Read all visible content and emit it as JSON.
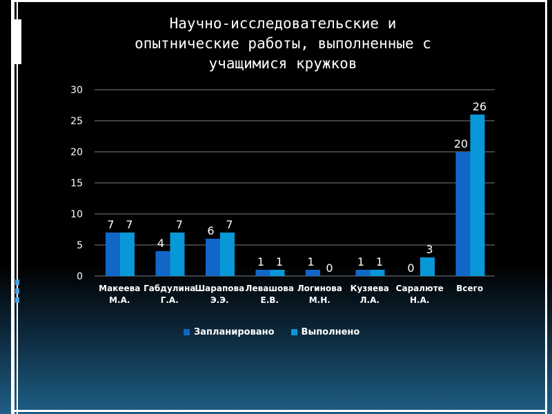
{
  "title_lines": [
    "Научно-исследовательские и",
    "опытнические работы, выполненные с",
    "учащимися кружков"
  ],
  "colors": {
    "planned": "#1167c8",
    "completed": "#0898d8",
    "gridline": "#7f7f7f",
    "text": "#ffffff"
  },
  "chart_data": {
    "type": "bar",
    "title": "Научно-исследовательские и опытнические работы, выполненные с учащимися кружков",
    "categories": [
      [
        "Макеева",
        "М.А."
      ],
      [
        "Габдулина",
        "Г.А."
      ],
      [
        "Шарапова",
        "Э.Э."
      ],
      [
        "Левашова",
        "Е.В."
      ],
      [
        "Логинова",
        "М.Н."
      ],
      [
        "Кузяева",
        "Л.А."
      ],
      [
        "Саралюте",
        "Н.А."
      ],
      [
        "Всего"
      ]
    ],
    "series": [
      {
        "name": "Запланировано",
        "values": [
          7,
          4,
          6,
          1,
          1,
          1,
          0,
          20
        ]
      },
      {
        "name": "Выполнено",
        "values": [
          7,
          7,
          7,
          1,
          0,
          1,
          3,
          26
        ]
      }
    ],
    "ylim": [
      0,
      30
    ],
    "yticks": [
      0,
      5,
      10,
      15,
      20,
      25,
      30
    ],
    "grid": true,
    "legend_position": "bottom"
  }
}
